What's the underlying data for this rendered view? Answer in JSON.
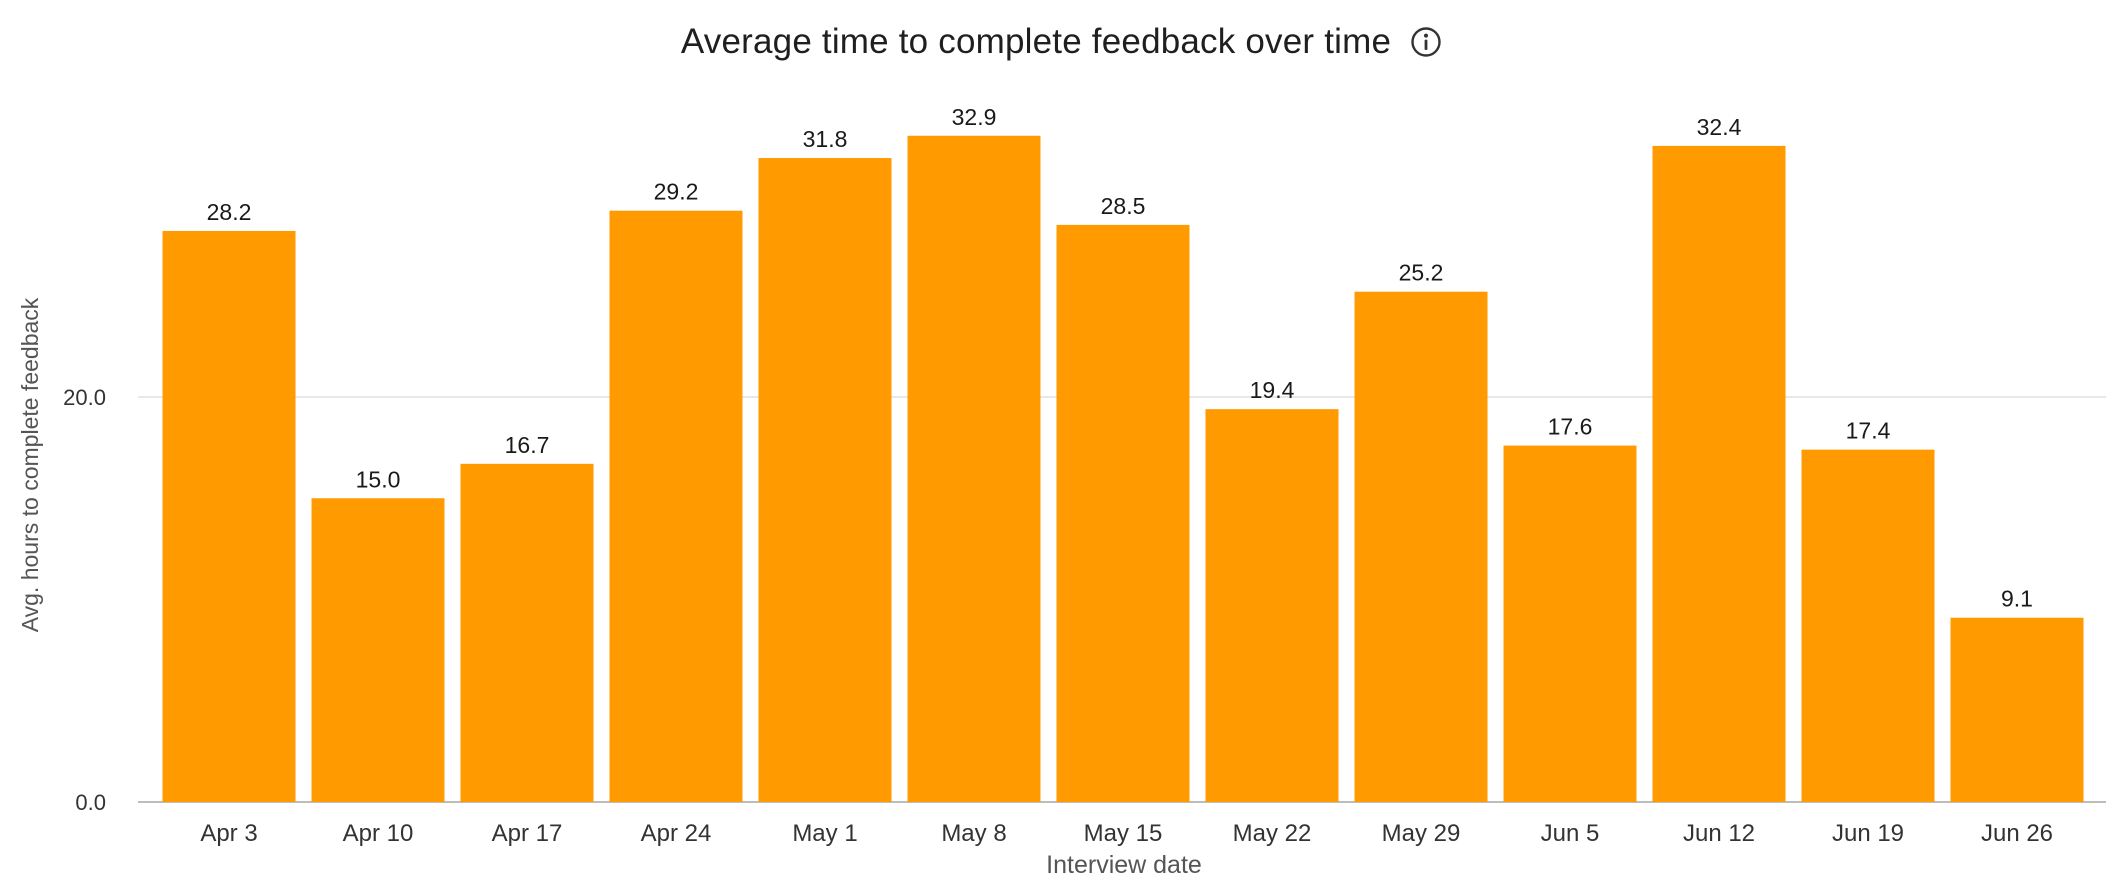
{
  "chart_data": {
    "type": "bar",
    "title": "Average time to complete feedback over time",
    "title_icon": "info-icon",
    "xlabel": "Interview date",
    "ylabel": "Avg. hours to complete feedback",
    "categories": [
      "Apr 3",
      "Apr 10",
      "Apr 17",
      "Apr 24",
      "May 1",
      "May 8",
      "May 15",
      "May 22",
      "May 29",
      "Jun 5",
      "Jun 12",
      "Jun 19",
      "Jun 26"
    ],
    "values": [
      28.2,
      15.0,
      16.7,
      29.2,
      31.8,
      32.9,
      28.5,
      19.4,
      25.2,
      17.6,
      32.4,
      17.4,
      9.1
    ],
    "value_labels": [
      "28.2",
      "15.0",
      "16.7",
      "29.2",
      "31.8",
      "32.9",
      "28.5",
      "19.4",
      "25.2",
      "17.6",
      "32.4",
      "17.4",
      "9.1"
    ],
    "yticks": [
      0,
      20
    ],
    "ytick_labels": [
      "0.0",
      "20.0"
    ],
    "ylim": [
      0,
      36.4
    ],
    "grid": true,
    "legend": "none",
    "bar_color": "#FF9A00"
  }
}
